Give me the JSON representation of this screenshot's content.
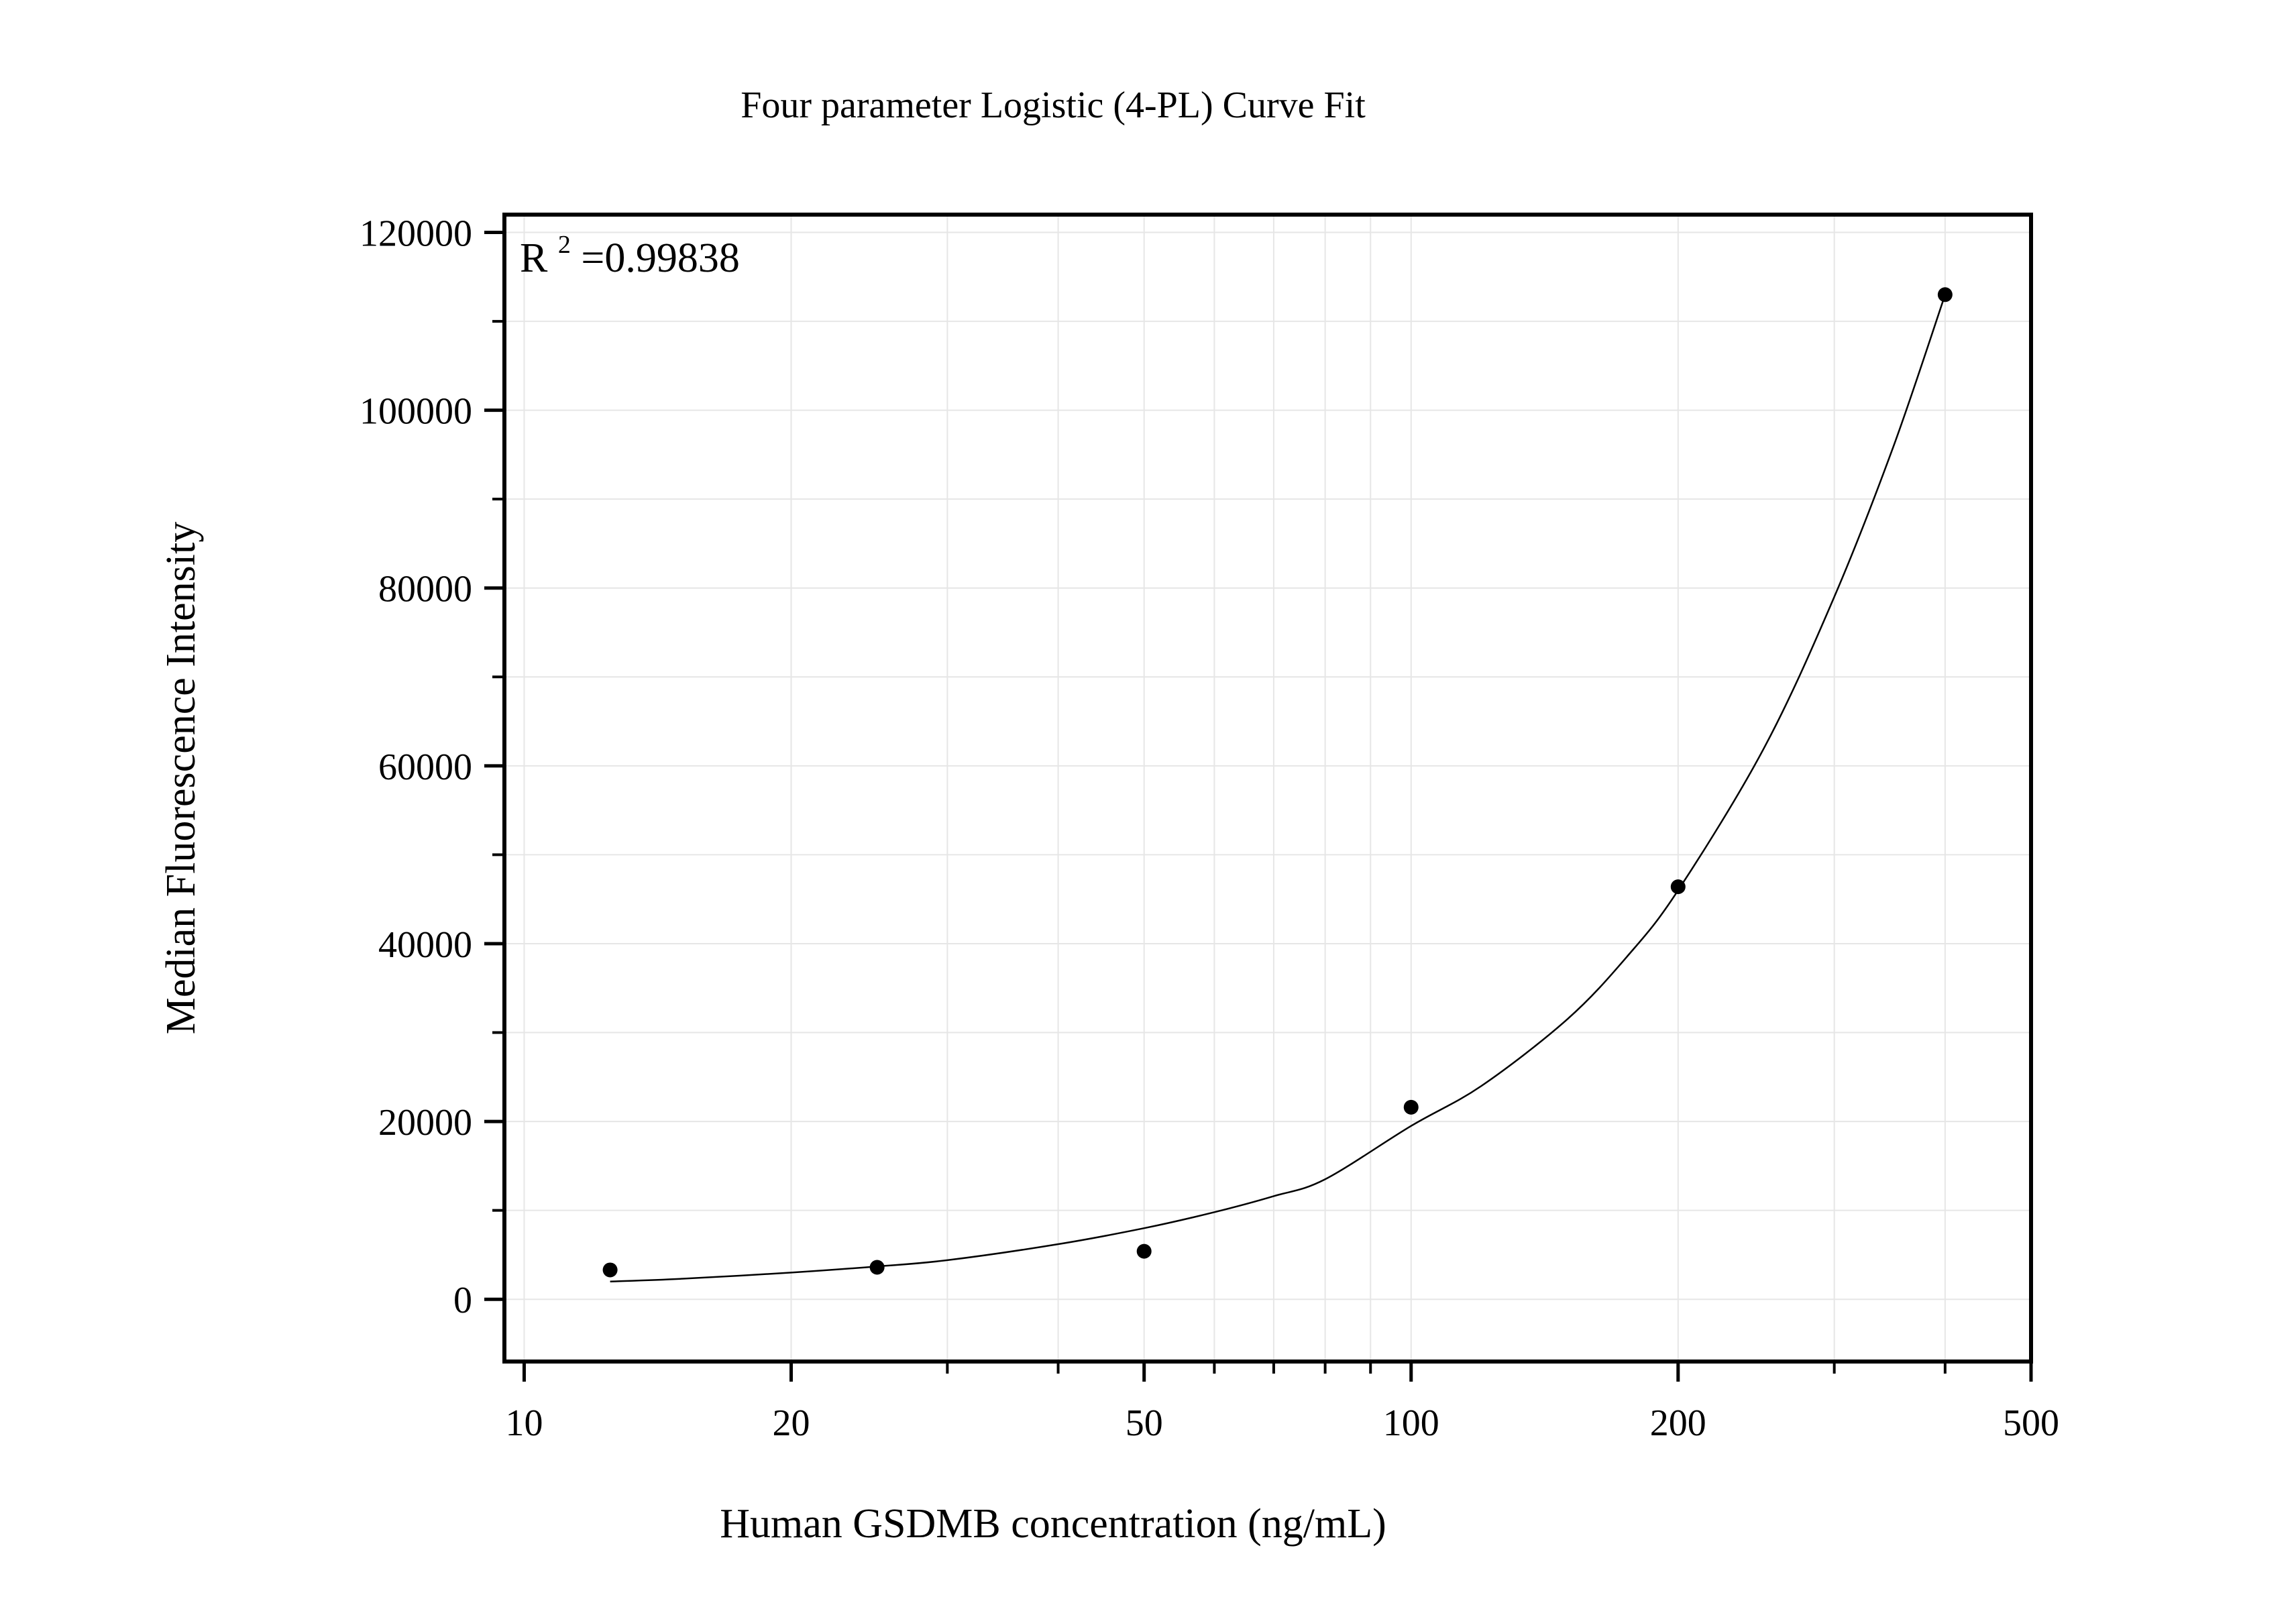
{
  "chart_data": {
    "type": "scatter",
    "title": "Four parameter Logistic (4-PL) Curve Fit",
    "xlabel": "Human GSDMB concentration (ng/mL)",
    "ylabel": "Median Fluorescence Intensity",
    "x_scale": "log",
    "xlim": [
      9.5,
      500
    ],
    "ylim": [
      -7000,
      122000
    ],
    "x_ticks": [
      10,
      20,
      50,
      100,
      200,
      500
    ],
    "x_tick_labels": [
      "10",
      "20",
      "50",
      "100",
      "200",
      "500"
    ],
    "y_ticks": [
      0,
      20000,
      40000,
      60000,
      80000,
      100000,
      120000
    ],
    "y_tick_labels": [
      "0",
      "20000",
      "40000",
      "60000",
      "80000",
      "100000",
      "120000"
    ],
    "grid": true,
    "annotation": {
      "base": "R",
      "sup": "2",
      "rest": "=0.99838"
    },
    "series": [
      {
        "type": "scatter",
        "x": [
          12.5,
          25,
          50,
          100,
          200,
          400
        ],
        "y": [
          3300,
          3600,
          5400,
          21600,
          46400,
          113000
        ]
      },
      {
        "type": "line",
        "x": [
          12.5,
          15,
          20,
          25,
          30,
          40,
          50,
          60,
          70,
          80,
          100,
          120,
          150,
          175,
          200,
          250,
          300,
          350,
          400
        ],
        "y": [
          2000,
          2300,
          3000,
          3700,
          4400,
          6200,
          8000,
          9800,
          11600,
          13500,
          19500,
          24000,
          31500,
          38500,
          46000,
          62000,
          79000,
          96000,
          113000
        ]
      }
    ],
    "colors": {
      "marker": "#000000",
      "line": "#000000",
      "grid": "#e6e6e6",
      "axis": "#000000"
    }
  }
}
